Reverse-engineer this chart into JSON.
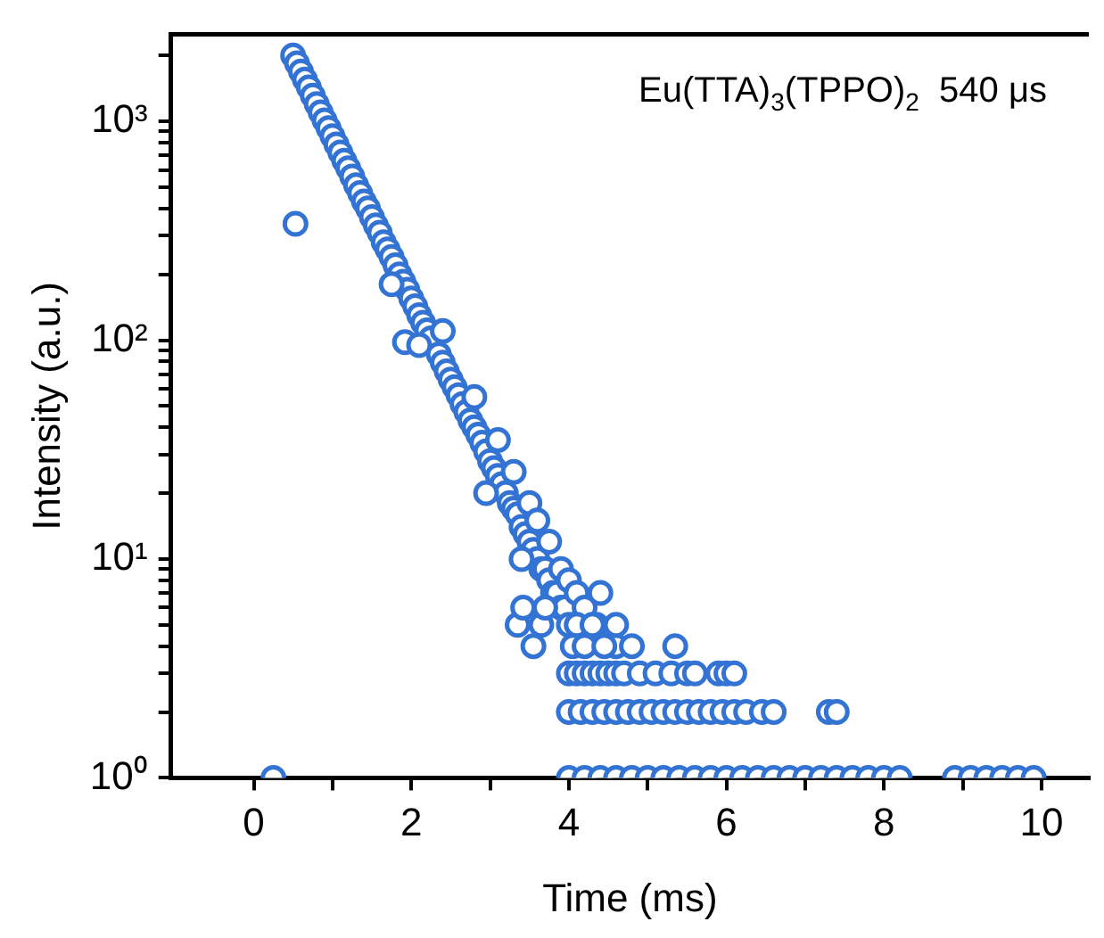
{
  "chart_data": {
    "type": "scatter",
    "xlabel": "Time (ms)",
    "ylabel": "Intensity (a.u.)",
    "log": "y",
    "marker": "circle",
    "annotations": [
      "Eu(TTA)$_{3}$(TPPO)$_{2}$  540 μs"
    ],
    "xlim": [
      -1.05,
      10.6
    ],
    "ylim": [
      1,
      2500
    ],
    "xticks": [
      0,
      {
        "value": 1,
        "label": null
      },
      2,
      {
        "value": 3,
        "label": null
      },
      4,
      {
        "value": 5,
        "label": null
      },
      6,
      {
        "value": 7,
        "label": null
      },
      8,
      {
        "value": 9,
        "label": null
      },
      10
    ],
    "yticks": [
      {
        "value": 1,
        "label": "10⁰"
      },
      {
        "value": 2,
        "label": null
      },
      {
        "value": 3,
        "label": null
      },
      {
        "value": 4,
        "label": null
      },
      {
        "value": 5,
        "label": null
      },
      {
        "value": 6,
        "label": null
      },
      {
        "value": 7,
        "label": null
      },
      {
        "value": 8,
        "label": null
      },
      {
        "value": 9,
        "label": null
      },
      {
        "value": 10,
        "label": "10¹"
      },
      {
        "value": 20,
        "label": null
      },
      {
        "value": 30,
        "label": null
      },
      {
        "value": 40,
        "label": null
      },
      {
        "value": 50,
        "label": null
      },
      {
        "value": 60,
        "label": null
      },
      {
        "value": 70,
        "label": null
      },
      {
        "value": 80,
        "label": null
      },
      {
        "value": 90,
        "label": null
      },
      {
        "value": 100,
        "label": "10²"
      },
      {
        "value": 200,
        "label": null
      },
      {
        "value": 300,
        "label": null
      },
      {
        "value": 400,
        "label": null
      },
      {
        "value": 500,
        "label": null
      },
      {
        "value": 600,
        "label": null
      },
      {
        "value": 700,
        "label": null
      },
      {
        "value": 800,
        "label": null
      },
      {
        "value": 900,
        "label": null
      },
      {
        "value": 1000,
        "label": "10³"
      },
      {
        "value": 2000,
        "label": null
      }
    ],
    "series": [
      {
        "color": "#3373d3",
        "x": [
          0.5,
          0.55,
          0.6,
          0.65,
          0.7,
          0.75,
          0.8,
          0.85,
          0.9,
          0.95,
          1.0,
          1.05,
          1.1,
          1.15,
          1.2,
          1.25,
          1.3,
          1.35,
          1.4,
          1.45,
          1.5,
          1.55,
          1.6,
          1.65,
          1.7,
          1.75,
          1.8,
          1.85,
          1.9,
          1.95,
          2.0,
          2.05,
          2.1,
          2.15,
          2.2,
          2.25,
          2.35,
          2.4,
          2.45,
          2.5,
          2.55,
          2.6,
          2.65,
          2.7,
          2.75,
          2.8,
          2.85,
          2.9,
          2.95,
          3.0,
          3.05,
          3.1,
          3.15,
          3.2,
          3.25,
          3.3,
          3.35,
          3.4,
          3.45,
          3.5,
          3.55,
          3.6,
          3.65,
          3.7,
          3.75,
          3.8,
          3.85,
          3.9,
          3.95,
          4.0,
          0.53,
          0.25,
          1.92,
          2.1,
          2.4,
          2.8,
          2.95,
          3.1,
          3.3,
          3.4,
          3.5,
          3.6,
          3.65,
          3.75,
          3.9,
          4.0,
          4.1,
          4.2,
          4.35,
          4.4,
          4.6,
          4.8,
          3.35,
          3.42,
          3.55,
          3.7,
          1.75,
          4.1,
          4.3,
          4.6,
          4.05,
          4.2,
          4.45,
          5.35,
          4.0,
          4.1,
          4.2,
          4.3,
          4.4,
          4.5,
          4.6,
          4.7,
          4.9,
          5.1,
          5.3,
          5.5,
          5.6,
          5.9,
          6.0,
          6.1,
          4.0,
          4.15,
          4.3,
          4.45,
          4.6,
          4.75,
          4.9,
          5.05,
          5.2,
          5.35,
          5.5,
          5.65,
          5.8,
          5.95,
          6.1,
          6.25,
          6.45,
          6.6,
          7.3,
          7.4,
          4.0,
          4.2,
          4.4,
          4.6,
          4.8,
          5.0,
          5.2,
          5.4,
          5.6,
          5.8,
          6.0,
          6.2,
          6.4,
          6.6,
          6.8,
          7.0,
          7.2,
          7.4,
          7.6,
          7.8,
          8.0,
          8.2,
          8.9,
          9.1,
          9.3,
          9.5,
          9.7,
          9.9
        ],
        "values": [
          2000,
          1840,
          1690,
          1550,
          1430,
          1310,
          1200,
          1100,
          1010,
          930,
          855,
          785,
          720,
          660,
          610,
          560,
          510,
          470,
          430,
          400,
          365,
          335,
          310,
          280,
          260,
          240,
          220,
          200,
          185,
          170,
          155,
          143,
          130,
          120,
          111,
          102,
          86,
          79,
          72,
          66,
          61,
          56,
          51,
          47,
          43,
          40,
          37,
          34,
          31,
          28,
          26,
          24,
          22,
          20,
          18,
          17,
          16,
          14,
          13,
          12,
          11,
          10,
          9,
          9,
          8,
          7,
          7,
          6,
          6,
          5,
          340,
          1,
          98,
          95,
          110,
          55,
          20,
          35,
          25,
          10,
          18,
          15,
          5,
          12,
          9,
          8,
          7,
          6,
          5,
          7,
          4,
          4,
          5,
          6,
          4,
          6,
          180,
          5,
          5,
          5,
          4,
          4,
          4,
          4,
          3,
          3,
          3,
          3,
          3,
          3,
          3,
          3,
          3,
          3,
          3,
          3,
          3,
          3,
          3,
          3,
          2,
          2,
          2,
          2,
          2,
          2,
          2,
          2,
          2,
          2,
          2,
          2,
          2,
          2,
          2,
          2,
          2,
          2,
          2,
          2,
          1,
          1,
          1,
          1,
          1,
          1,
          1,
          1,
          1,
          1,
          1,
          1,
          1,
          1,
          1,
          1,
          1,
          1,
          1,
          1,
          1,
          1,
          1,
          1,
          1,
          1,
          1,
          1
        ]
      }
    ]
  }
}
